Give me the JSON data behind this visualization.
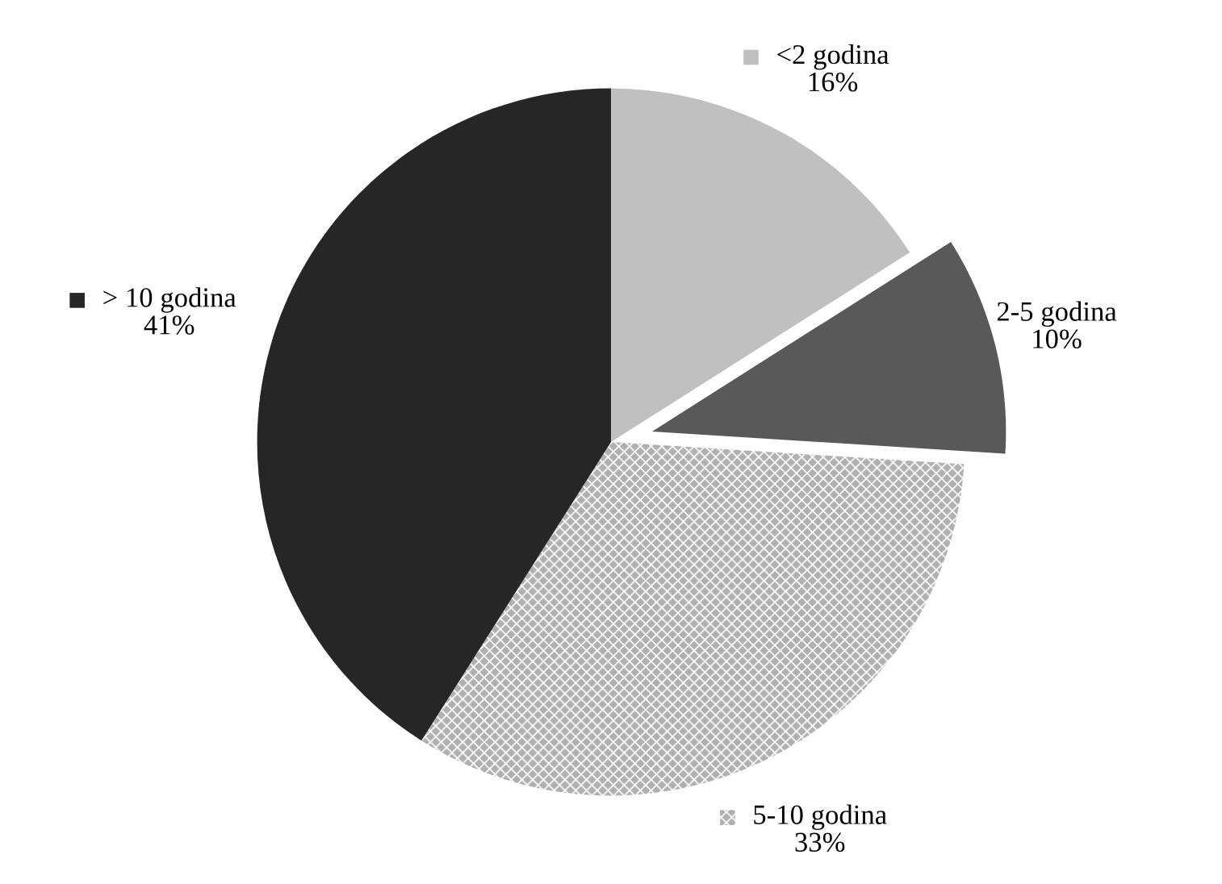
{
  "chart_data": {
    "type": "pie",
    "categories": [
      "<2 godina",
      "2-5 godina",
      "5-10 godina",
      "> 10 godina"
    ],
    "values": [
      16,
      10,
      33,
      41
    ],
    "value_labels": [
      "16%",
      "10%",
      "33%",
      "41%"
    ],
    "colors": [
      "#c0c0c0",
      "#595959",
      "#b0b0b0",
      "#262626"
    ],
    "legend": "top left"
  }
}
